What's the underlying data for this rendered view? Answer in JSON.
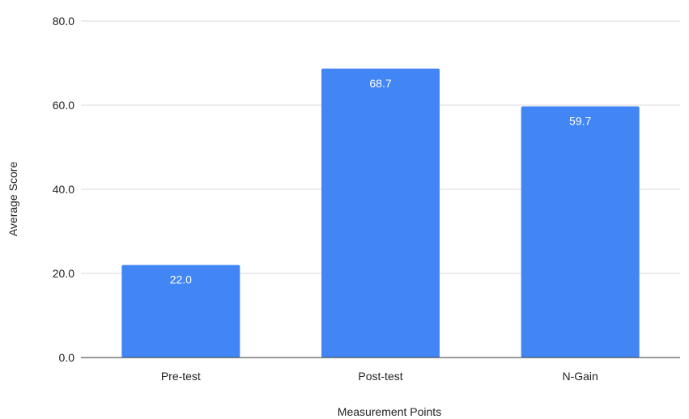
{
  "chart_data": {
    "type": "bar",
    "categories": [
      "Pre-test",
      "Post-test",
      "N-Gain"
    ],
    "values": [
      22.0,
      68.7,
      59.7
    ],
    "data_labels": [
      "22.0",
      "68.7",
      "59.7"
    ],
    "xlabel": "Measurement Points",
    "ylabel": "Average Score",
    "ylim": [
      0,
      80
    ],
    "yticks": [
      0,
      20,
      40,
      60,
      80
    ],
    "ytick_labels": [
      "0.0",
      "20.0",
      "40.0",
      "60.0",
      "80.0"
    ],
    "grid": true,
    "legend": "none",
    "bar_color": "#4285f4"
  }
}
